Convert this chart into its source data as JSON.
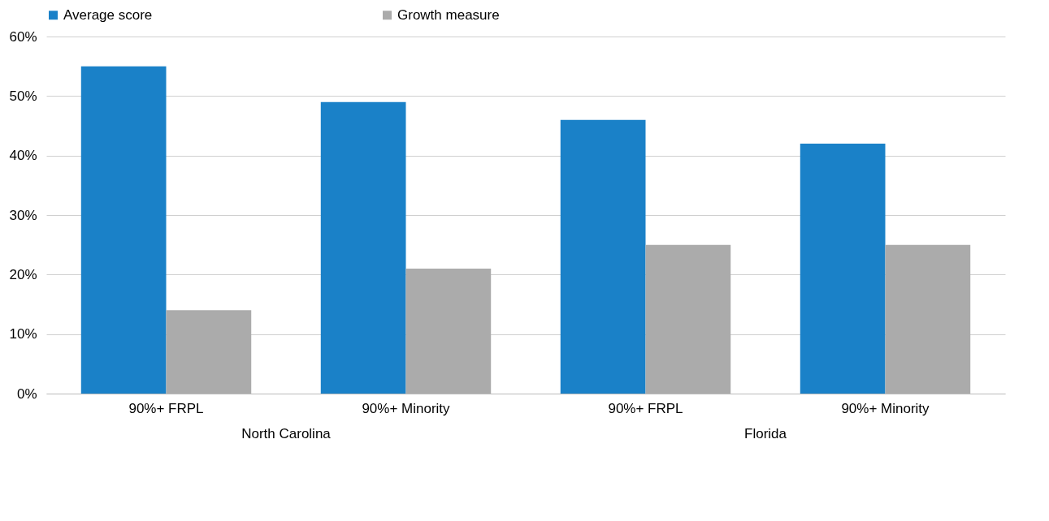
{
  "chart_data": {
    "type": "bar",
    "categories": [
      "90%+ FRPL",
      "90%+ Minority",
      "90%+ FRPL",
      "90%+ Minority"
    ],
    "series": [
      {
        "name": "Average score",
        "color": "#1a81c8",
        "values": [
          55,
          49,
          46,
          42
        ]
      },
      {
        "name": "Growth measure",
        "color": "#ababab",
        "values": [
          14,
          21,
          25,
          25
        ]
      }
    ],
    "ylim": [
      0,
      60
    ],
    "yticks": [
      {
        "value": 0,
        "label": "0%"
      },
      {
        "value": 10,
        "label": "10%"
      },
      {
        "value": 20,
        "label": "20%"
      },
      {
        "value": 30,
        "label": "30%"
      },
      {
        "value": 40,
        "label": "40%"
      },
      {
        "value": 50,
        "label": "50%"
      },
      {
        "value": 60,
        "label": "60%"
      }
    ],
    "annotations": [
      "North Carolina",
      "Florida"
    ],
    "grid": "y",
    "legend": "top"
  }
}
